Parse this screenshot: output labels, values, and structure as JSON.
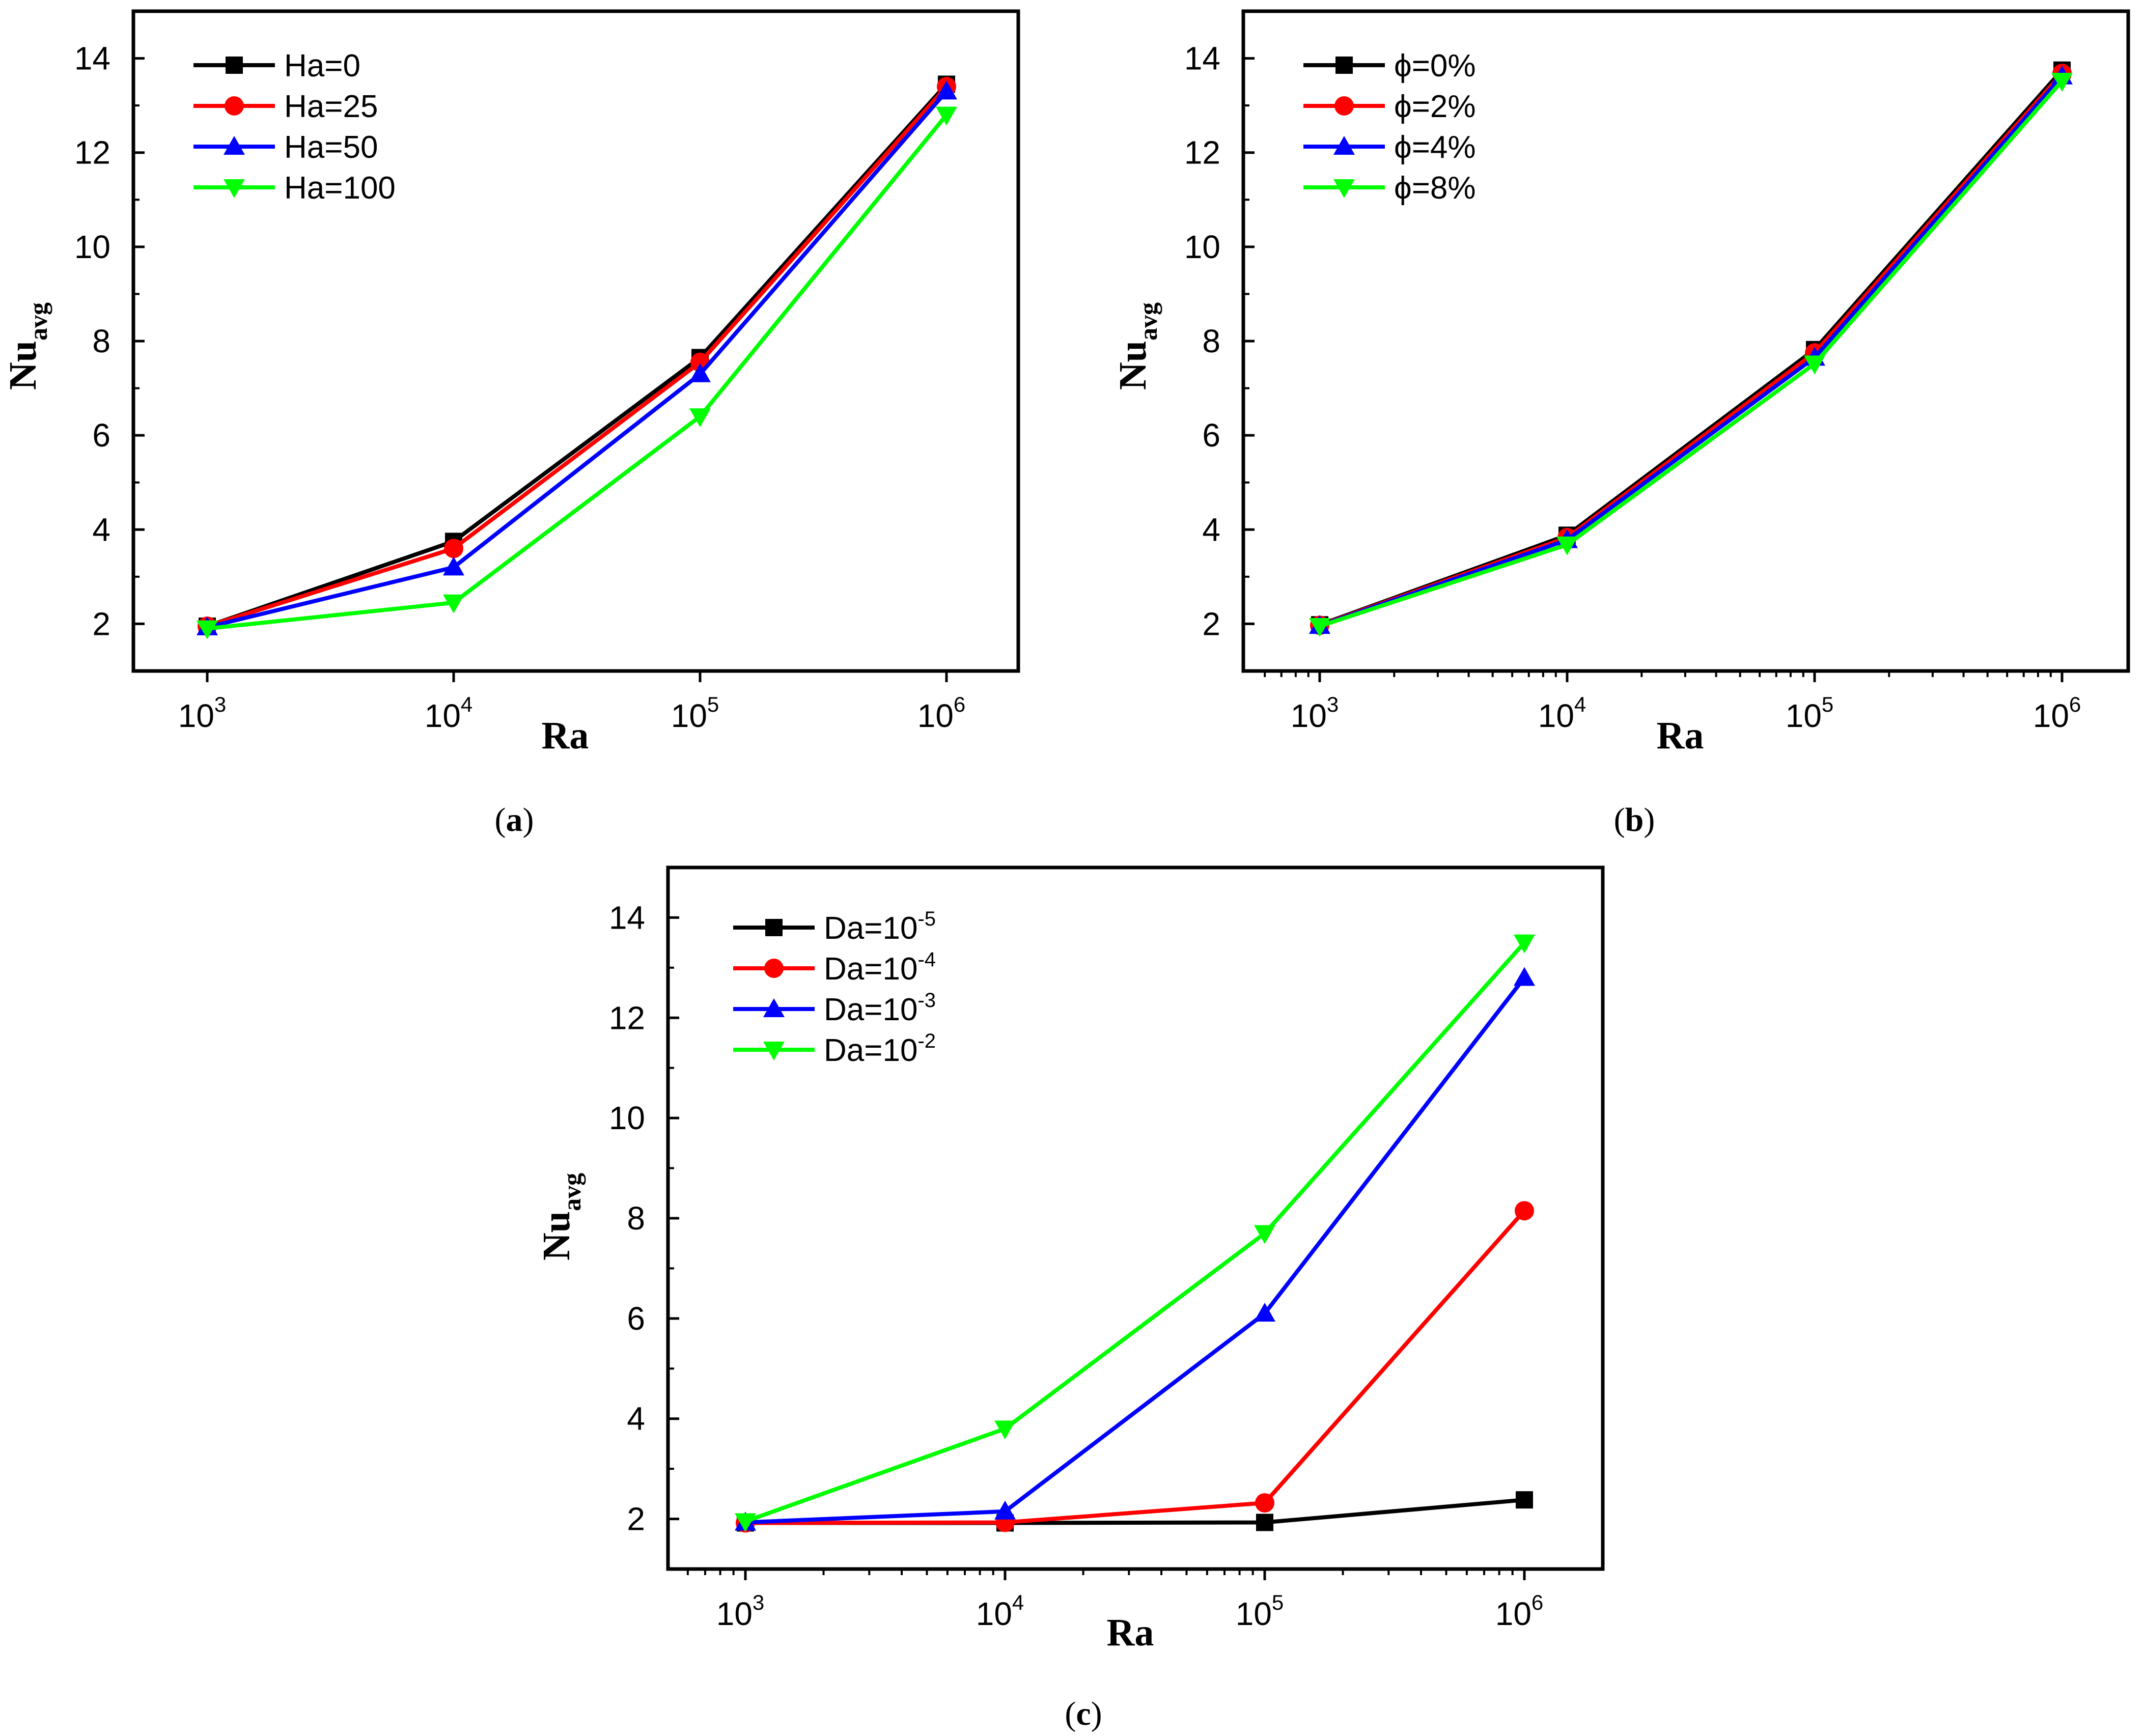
{
  "chart_data": [
    {
      "type": "line",
      "panel": "a",
      "caption_label": "a",
      "x": [
        1000,
        10000,
        100000,
        1000000
      ],
      "x_ticks": [
        {
          "base": "10",
          "exp": "3"
        },
        {
          "base": "10",
          "exp": "4"
        },
        {
          "base": "10",
          "exp": "5"
        },
        {
          "base": "10",
          "exp": "6"
        }
      ],
      "y_ticks": [
        "2",
        "4",
        "6",
        "8",
        "10",
        "12",
        "14"
      ],
      "ylim": [
        1.0,
        15.0
      ],
      "xscale": "log",
      "xlabel": "Ra",
      "ylabel_main": "Nu",
      "ylabel_sub": "avg",
      "legend_position": "top-left",
      "series": [
        {
          "name": "Ha=0",
          "label": {
            "text": "Ha=0"
          },
          "color": "#000000",
          "marker": "square",
          "values": [
            1.95,
            3.75,
            7.65,
            13.45
          ]
        },
        {
          "name": "Ha=25",
          "label": {
            "text": "Ha=25"
          },
          "color": "#ff0000",
          "marker": "circle",
          "values": [
            1.95,
            3.6,
            7.55,
            13.4
          ]
        },
        {
          "name": "Ha=50",
          "label": {
            "text": "Ha=50"
          },
          "color": "#0000ff",
          "marker": "triangle-up",
          "values": [
            1.93,
            3.2,
            7.3,
            13.3
          ]
        },
        {
          "name": "Ha=100",
          "label": {
            "text": "Ha=100"
          },
          "color": "#00ff00",
          "marker": "triangle-down",
          "values": [
            1.9,
            2.45,
            6.4,
            12.8
          ]
        }
      ]
    },
    {
      "type": "line",
      "panel": "b",
      "caption_label": "b",
      "x": [
        1000,
        10000,
        100000,
        1000000
      ],
      "x_ticks": [
        {
          "base": "10",
          "exp": "3"
        },
        {
          "base": "10",
          "exp": "4"
        },
        {
          "base": "10",
          "exp": "5"
        },
        {
          "base": "10",
          "exp": "6"
        }
      ],
      "y_ticks": [
        "2",
        "4",
        "6",
        "8",
        "10",
        "12",
        "14"
      ],
      "ylim": [
        1.0,
        15.0
      ],
      "xscale": "log",
      "xlabel": "Ra",
      "ylabel_main": "Nu",
      "ylabel_sub": "avg",
      "legend_position": "top-left",
      "series": [
        {
          "name": "ϕ=0%",
          "label": {
            "text": "ϕ=0%"
          },
          "color": "#000000",
          "marker": "square",
          "values": [
            1.98,
            3.88,
            7.82,
            13.75
          ]
        },
        {
          "name": "ϕ=2%",
          "label": {
            "text": "ϕ=2%"
          },
          "color": "#ff0000",
          "marker": "circle",
          "values": [
            1.97,
            3.83,
            7.75,
            13.68
          ]
        },
        {
          "name": "ϕ=4%",
          "label": {
            "text": "ϕ=4%"
          },
          "color": "#0000ff",
          "marker": "triangle-up",
          "values": [
            1.96,
            3.78,
            7.65,
            13.62
          ]
        },
        {
          "name": "ϕ=8%",
          "label": {
            "text": "ϕ=8%"
          },
          "color": "#00ff00",
          "marker": "triangle-down",
          "values": [
            1.95,
            3.68,
            7.52,
            13.52
          ]
        }
      ]
    },
    {
      "type": "line",
      "panel": "c",
      "caption_label": "c",
      "x": [
        1000,
        10000,
        100000,
        1000000
      ],
      "x_ticks": [
        {
          "base": "10",
          "exp": "3"
        },
        {
          "base": "10",
          "exp": "4"
        },
        {
          "base": "10",
          "exp": "5"
        },
        {
          "base": "10",
          "exp": "6"
        }
      ],
      "y_ticks": [
        "2",
        "4",
        "6",
        "8",
        "10",
        "12",
        "14"
      ],
      "ylim": [
        1.0,
        15.0
      ],
      "xscale": "log",
      "xlabel": "Ra",
      "ylabel_main": "Nu",
      "ylabel_sub": "avg",
      "legend_position": "top-left",
      "series": [
        {
          "name": "Da=10^-5",
          "label": {
            "text": "Da=10",
            "sup": "-5"
          },
          "color": "#000000",
          "marker": "square",
          "values": [
            1.92,
            1.92,
            1.93,
            2.38
          ]
        },
        {
          "name": "Da=10^-4",
          "label": {
            "text": "Da=10",
            "sup": "-4"
          },
          "color": "#ff0000",
          "marker": "circle",
          "values": [
            1.92,
            1.93,
            2.32,
            8.15
          ]
        },
        {
          "name": "Da=10^-3",
          "label": {
            "text": "Da=10",
            "sup": "-3"
          },
          "color": "#0000ff",
          "marker": "triangle-up",
          "values": [
            1.93,
            2.15,
            6.1,
            12.8
          ]
        },
        {
          "name": "Da=10^-2",
          "label": {
            "text": "Da=10",
            "sup": "-2"
          },
          "color": "#00ff00",
          "marker": "triangle-down",
          "values": [
            1.95,
            3.8,
            7.7,
            13.5
          ]
        }
      ]
    }
  ]
}
